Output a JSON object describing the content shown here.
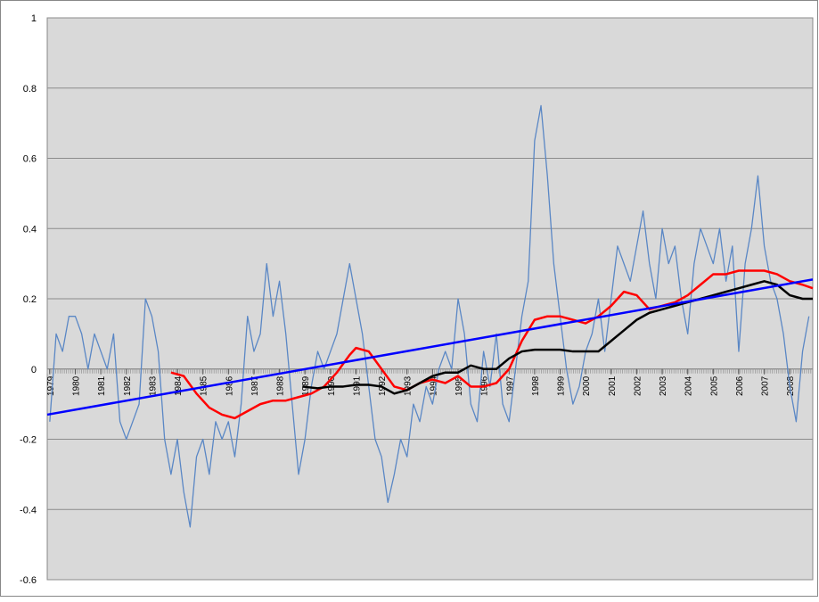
{
  "chart_data": {
    "type": "line",
    "xlim": [
      1978.9,
      2008.9
    ],
    "xticks": [
      1979,
      1980,
      1981,
      1982,
      1983,
      1984,
      1985,
      1986,
      1987,
      1988,
      1989,
      1990,
      1991,
      1992,
      1993,
      1994,
      1995,
      1996,
      1997,
      1998,
      1999,
      2000,
      2001,
      2002,
      2003,
      2004,
      2005,
      2006,
      2007,
      2008
    ],
    "ylim": [
      -0.6,
      1
    ],
    "yticks": [
      -0.6,
      -0.4,
      -0.2,
      0,
      0.2,
      0.4,
      0.6,
      0.8,
      1
    ],
    "grid": true,
    "series": [
      {
        "color": "#5a87c5",
        "width": 1.3,
        "x": [
          1979,
          1979.25,
          1979.5,
          1979.75,
          1980,
          1980.25,
          1980.5,
          1980.75,
          1981,
          1981.25,
          1981.5,
          1981.75,
          1982,
          1982.25,
          1982.5,
          1982.75,
          1983,
          1983.25,
          1983.5,
          1983.75,
          1984,
          1984.25,
          1984.5,
          1984.75,
          1985,
          1985.25,
          1985.5,
          1985.75,
          1986,
          1986.25,
          1986.5,
          1986.75,
          1987,
          1987.25,
          1987.5,
          1987.75,
          1988,
          1988.25,
          1988.5,
          1988.75,
          1989,
          1989.25,
          1989.5,
          1989.75,
          1990,
          1990.25,
          1990.5,
          1990.75,
          1991,
          1991.25,
          1991.5,
          1991.75,
          1992,
          1992.25,
          1992.5,
          1992.75,
          1993,
          1993.25,
          1993.5,
          1993.75,
          1994,
          1994.25,
          1994.5,
          1994.75,
          1995,
          1995.25,
          1995.5,
          1995.75,
          1996,
          1996.25,
          1996.5,
          1996.75,
          1997,
          1997.25,
          1997.5,
          1997.75,
          1998,
          1998.25,
          1998.5,
          1998.75,
          1999,
          1999.25,
          1999.5,
          1999.75,
          2000,
          2000.25,
          2000.5,
          2000.75,
          2001,
          2001.25,
          2001.5,
          2001.75,
          2002,
          2002.25,
          2002.5,
          2002.75,
          2003,
          2003.25,
          2003.5,
          2003.75,
          2004,
          2004.25,
          2004.5,
          2004.75,
          2005,
          2005.25,
          2005.5,
          2005.75,
          2006,
          2006.25,
          2006.5,
          2006.75,
          2007,
          2007.25,
          2007.5,
          2007.75,
          2008,
          2008.25,
          2008.5,
          2008.75
        ],
        "values": [
          -0.15,
          0.1,
          0.05,
          0.15,
          0.15,
          0.1,
          0.0,
          0.1,
          0.05,
          0.0,
          0.1,
          -0.15,
          -0.2,
          -0.15,
          -0.1,
          0.2,
          0.15,
          0.05,
          -0.2,
          -0.3,
          -0.2,
          -0.35,
          -0.45,
          -0.25,
          -0.2,
          -0.3,
          -0.15,
          -0.2,
          -0.15,
          -0.25,
          -0.1,
          0.15,
          0.05,
          0.1,
          0.3,
          0.15,
          0.25,
          0.1,
          -0.1,
          -0.3,
          -0.2,
          -0.05,
          0.05,
          0.0,
          0.05,
          0.1,
          0.2,
          0.3,
          0.2,
          0.1,
          -0.05,
          -0.2,
          -0.25,
          -0.38,
          -0.3,
          -0.2,
          -0.25,
          -0.1,
          -0.15,
          -0.05,
          -0.1,
          0.0,
          0.05,
          0.0,
          0.2,
          0.1,
          -0.1,
          -0.15,
          0.05,
          -0.05,
          0.1,
          -0.1,
          -0.15,
          0.0,
          0.15,
          0.25,
          0.65,
          0.75,
          0.55,
          0.3,
          0.15,
          0.0,
          -0.1,
          -0.05,
          0.05,
          0.1,
          0.2,
          0.05,
          0.2,
          0.35,
          0.3,
          0.25,
          0.35,
          0.45,
          0.3,
          0.2,
          0.4,
          0.3,
          0.35,
          0.2,
          0.1,
          0.3,
          0.4,
          0.35,
          0.3,
          0.4,
          0.25,
          0.35,
          0.05,
          0.3,
          0.4,
          0.55,
          0.35,
          0.25,
          0.2,
          0.1,
          -0.05,
          -0.15,
          0.05,
          0.15
        ]
      },
      {
        "color": "#ff0000",
        "width": 2.5,
        "x": [
          1983.75,
          1984.25,
          1984.75,
          1985.25,
          1985.75,
          1986.25,
          1986.75,
          1987.25,
          1987.75,
          1988.25,
          1988.75,
          1989.25,
          1989.75,
          1990.25,
          1990.75,
          1991,
          1991.5,
          1992,
          1992.5,
          1993,
          1993.5,
          1994,
          1994.5,
          1995,
          1995.5,
          1996,
          1996.5,
          1997,
          1997.5,
          1998,
          1998.5,
          1999,
          1999.5,
          2000,
          2000.5,
          2001,
          2001.5,
          2002,
          2002.5,
          2003,
          2003.5,
          2004,
          2004.5,
          2005,
          2005.5,
          2006,
          2006.5,
          2007,
          2007.5,
          2008,
          2008.5,
          2008.9
        ],
        "values": [
          -0.01,
          -0.02,
          -0.07,
          -0.11,
          -0.13,
          -0.14,
          -0.12,
          -0.1,
          -0.09,
          -0.09,
          -0.08,
          -0.07,
          -0.05,
          -0.01,
          0.04,
          0.06,
          0.05,
          0.0,
          -0.05,
          -0.06,
          -0.04,
          -0.03,
          -0.04,
          -0.02,
          -0.05,
          -0.05,
          -0.04,
          0.0,
          0.08,
          0.14,
          0.15,
          0.15,
          0.14,
          0.13,
          0.15,
          0.18,
          0.22,
          0.21,
          0.17,
          0.18,
          0.19,
          0.21,
          0.24,
          0.27,
          0.27,
          0.28,
          0.28,
          0.28,
          0.27,
          0.25,
          0.24,
          0.23
        ]
      },
      {
        "color": "#000000",
        "width": 2.5,
        "x": [
          1988.9,
          1989.5,
          1990,
          1990.5,
          1991,
          1991.5,
          1992,
          1992.5,
          1993,
          1993.5,
          1994,
          1994.5,
          1995,
          1995.5,
          1996,
          1996.5,
          1997,
          1997.5,
          1998,
          1998.5,
          1999,
          1999.5,
          2000,
          2000.5,
          2001,
          2001.5,
          2002,
          2002.5,
          2003,
          2003.5,
          2004,
          2004.5,
          2005,
          2005.5,
          2006,
          2006.5,
          2007,
          2007.5,
          2008,
          2008.5,
          2008.9
        ],
        "values": [
          -0.05,
          -0.055,
          -0.05,
          -0.05,
          -0.045,
          -0.045,
          -0.05,
          -0.07,
          -0.06,
          -0.04,
          -0.02,
          -0.01,
          -0.01,
          0.01,
          0.0,
          0.0,
          0.03,
          0.05,
          0.055,
          0.055,
          0.055,
          0.05,
          0.05,
          0.05,
          0.08,
          0.11,
          0.14,
          0.16,
          0.17,
          0.18,
          0.19,
          0.2,
          0.21,
          0.22,
          0.23,
          0.24,
          0.25,
          0.24,
          0.21,
          0.2,
          0.2
        ]
      },
      {
        "color": "#0000ff",
        "width": 2.5,
        "x": [
          1978.9,
          2008.9
        ],
        "values": [
          -0.13,
          0.255
        ]
      }
    ]
  }
}
